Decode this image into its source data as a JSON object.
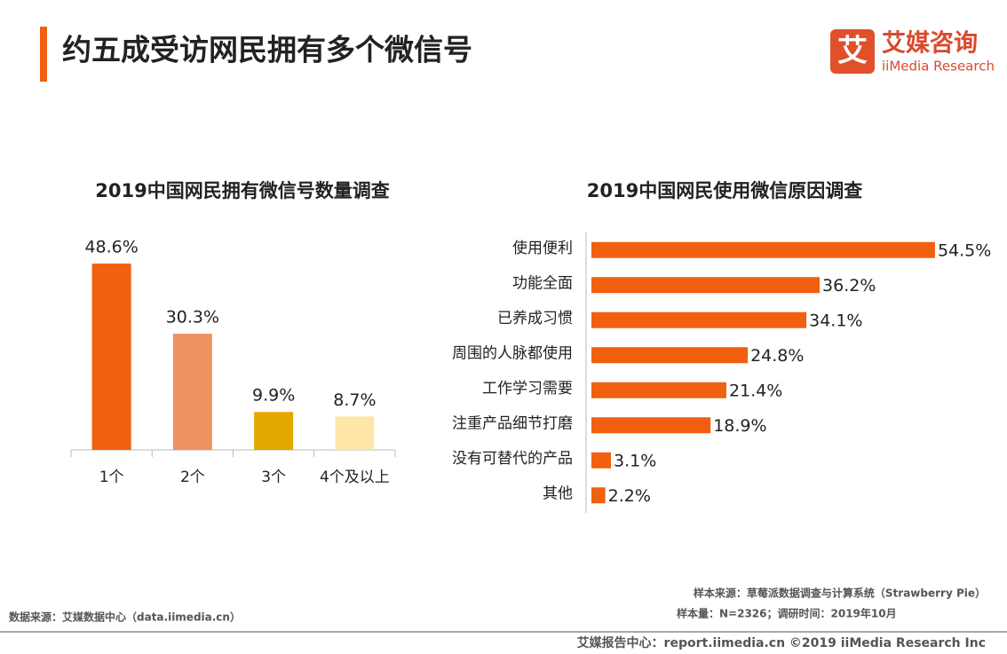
{
  "header": {
    "title": "约五成受访网民拥有多个微信号"
  },
  "logo": {
    "icon": "艾",
    "name": "艾媒咨询",
    "brand": "iiMedia Research"
  },
  "chart_data": [
    {
      "type": "bar",
      "title": "2019中国网民拥有微信号数量调查",
      "categories": [
        "1个",
        "2个",
        "3个",
        "4个及以上"
      ],
      "values": [
        48.6,
        30.3,
        9.9,
        8.7
      ],
      "value_labels": [
        "48.6%",
        "30.3%",
        "9.9%",
        "8.7%"
      ],
      "colors": [
        "#f0600f",
        "#ef9360",
        "#e2a800",
        "#fde6a8"
      ]
    },
    {
      "type": "hbar",
      "title": "2019中国网民使用微信原因调查",
      "categories": [
        "使用便利",
        "功能全面",
        "已养成习惯",
        "周围的人脉都使用",
        "工作学习需要",
        "注重产品细节打磨",
        "没有可替代的产品",
        "其他"
      ],
      "values": [
        54.5,
        36.2,
        34.1,
        24.8,
        21.4,
        18.9,
        3.1,
        2.2
      ],
      "value_labels": [
        "54.5%",
        "36.2%",
        "34.1%",
        "24.8%",
        "21.4%",
        "18.9%",
        "3.1%",
        "2.2%"
      ],
      "color": "#f0600f"
    }
  ],
  "footer": {
    "source": "数据来源：艾媒数据中心（data.iimedia.cn）",
    "sample_source": "样本来源：草莓派数据调查与计算系统（Strawberry Pie）",
    "sample_size": "样本量：N=2326；调研时间：2019年10月",
    "report": "艾媒报告中心：report.iimedia.cn ©2019  iiMedia Research  Inc"
  }
}
